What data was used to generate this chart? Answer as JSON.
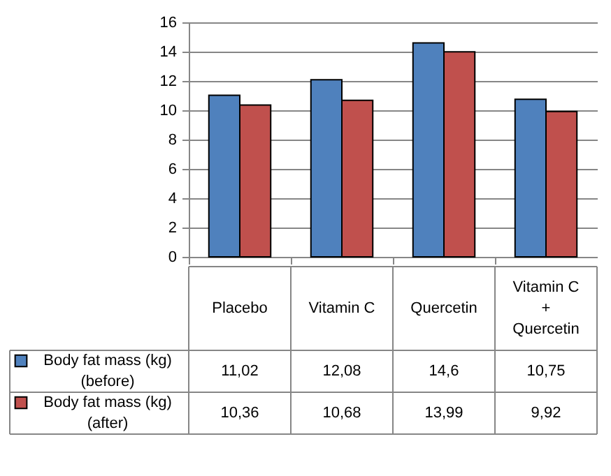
{
  "chart_data": {
    "type": "bar",
    "categories": [
      "Placebo",
      "Vitamin C",
      "Quercetin",
      "Vitamin C + Quercetin"
    ],
    "series": [
      {
        "name": "Body fat mass (kg) (before)",
        "color": "#4f81bd",
        "values": [
          11.02,
          12.08,
          14.6,
          10.75
        ],
        "value_labels": [
          "11,02",
          "12,08",
          "14,6",
          "10,75"
        ]
      },
      {
        "name": "Body fat mass (kg) (after)",
        "color": "#c0504d",
        "values": [
          10.36,
          10.68,
          13.99,
          9.92
        ],
        "value_labels": [
          "10,36",
          "10,68",
          "13,99",
          "9,92"
        ]
      }
    ],
    "legend": "bottom left",
    "ylim": [
      0,
      16
    ],
    "yticks": [
      0,
      2,
      4,
      6,
      8,
      10,
      12,
      14,
      16
    ],
    "grid": "y"
  }
}
